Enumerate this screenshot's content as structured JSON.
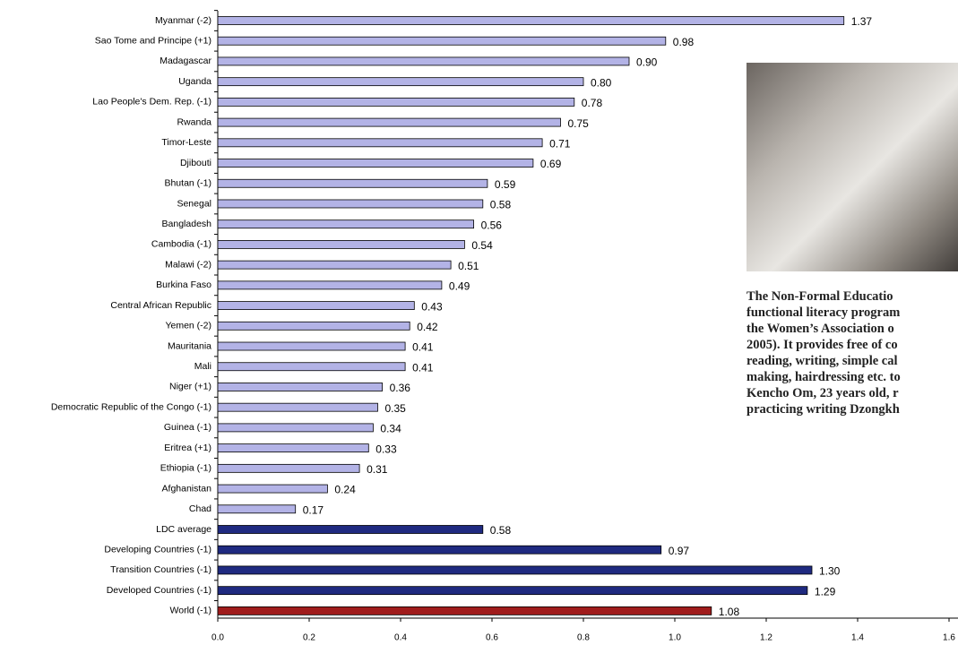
{
  "chart_data": {
    "type": "bar",
    "orientation": "horizontal",
    "categories": [
      "Myanmar (-2)",
      "Sao Tome and Principe (+1)",
      "Madagascar",
      "Uganda",
      "Lao People's Dem. Rep. (-1)",
      "Rwanda",
      "Timor-Leste",
      "Djibouti",
      "Bhutan (-1)",
      "Senegal",
      "Bangladesh",
      "Cambodia (-1)",
      "Malawi (-2)",
      "Burkina Faso",
      "Central African Republic",
      "Yemen (-2)",
      "Mauritania",
      "Mali",
      "Niger (+1)",
      "Democratic Republic of the Congo (-1)",
      "Guinea (-1)",
      "Eritrea (+1)",
      "Ethiopia (-1)",
      "Afghanistan",
      "Chad",
      "LDC average",
      "Developing Countries (-1)",
      "Transition Countries (-1)",
      "Developed Countries (-1)",
      "World (-1)"
    ],
    "values": [
      1.37,
      0.98,
      0.9,
      0.8,
      0.78,
      0.75,
      0.71,
      0.69,
      0.59,
      0.58,
      0.56,
      0.54,
      0.51,
      0.49,
      0.43,
      0.42,
      0.41,
      0.41,
      0.36,
      0.35,
      0.34,
      0.33,
      0.31,
      0.24,
      0.17,
      0.58,
      0.97,
      1.3,
      1.29,
      1.08
    ],
    "value_labels": [
      "1.37",
      "0.98",
      "0.90",
      "0.80",
      "0.78",
      "0.75",
      "0.71",
      "0.69",
      "0.59",
      "0.58",
      "0.56",
      "0.54",
      "0.51",
      "0.49",
      "0.43",
      "0.42",
      "0.41",
      "0.41",
      "0.36",
      "0.35",
      "0.34",
      "0.33",
      "0.31",
      "0.24",
      "0.17",
      "0.58",
      "0.97",
      "1.30",
      "1.29",
      "1.08"
    ],
    "colors": [
      "#b3b3e6",
      "#b3b3e6",
      "#b3b3e6",
      "#b3b3e6",
      "#b3b3e6",
      "#b3b3e6",
      "#b3b3e6",
      "#b3b3e6",
      "#b3b3e6",
      "#b3b3e6",
      "#b3b3e6",
      "#b3b3e6",
      "#b3b3e6",
      "#b3b3e6",
      "#b3b3e6",
      "#b3b3e6",
      "#b3b3e6",
      "#b3b3e6",
      "#b3b3e6",
      "#b3b3e6",
      "#b3b3e6",
      "#b3b3e6",
      "#b3b3e6",
      "#b3b3e6",
      "#b3b3e6",
      "#1f2a80",
      "#1f2a80",
      "#1f2a80",
      "#1f2a80",
      "#a01c1c"
    ],
    "xlim": [
      0,
      1.6
    ],
    "xticks": [
      {
        "value": 0,
        "label": "0.0"
      },
      0.2,
      0.4,
      0.6,
      0.8,
      {
        "value": 1,
        "label": "1.0"
      },
      1.2,
      1.4,
      1.6
    ]
  },
  "caption": [
    "The Non-Formal Educatio",
    "functional literacy program",
    "the Women’s Association o",
    "2005). It provides free of co",
    "reading, writing, simple cal",
    "making, hairdressing etc. to",
    "Kencho Om, 23 years old, r",
    "practicing writing Dzongkh"
  ]
}
